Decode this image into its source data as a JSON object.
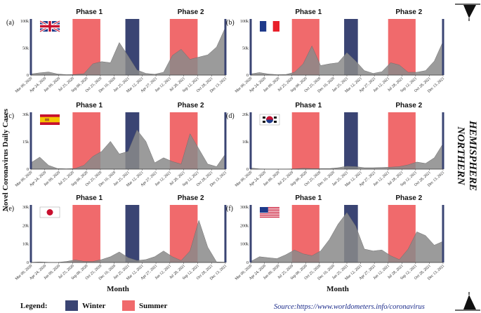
{
  "title": "Novel Coronavirus Daily Cases",
  "ylabel": "Novel Coronavirus Daily Cases",
  "xlabel": "Month",
  "hemisphere": [
    "NORTHERN",
    "HEMISPHERE"
  ],
  "phase_labels": [
    "Phase 1",
    "Phase 2"
  ],
  "legend": {
    "title": "Legend:",
    "items": [
      {
        "label": "Winter",
        "color": "#3a4473"
      },
      {
        "label": "Summer",
        "color": "#f06a6c"
      }
    ]
  },
  "source": {
    "prefix": "Source:",
    "url": "https://www.worldometers.info/coronavirus"
  },
  "colors": {
    "area": "#8a8a8a",
    "winter": "#3a4473",
    "summer": "#f06a6c",
    "axis": "#3a4473"
  },
  "chart_data": [
    {
      "type": "area",
      "panel": "(a)",
      "country": "United Kingdom",
      "flag": "uk",
      "yticks": [
        "100k",
        "50k",
        "0"
      ],
      "ylim": [
        0,
        100000
      ],
      "xticks": [
        "Mar 09, 2020",
        "Apr 24, 2020",
        "Jun 09, 2020",
        "Jul 25, 2020",
        "Sep 09, 2020",
        "Oct 25, 2020",
        "Dec 10, 2020",
        "Jan 25, 2021",
        "Mar 12, 2021",
        "Apr 27, 2021",
        "Jun 12, 2021",
        "Jul 28, 2021",
        "Sep 12, 2021",
        "Oct 28, 2021",
        "Dec 13, 2021"
      ],
      "summer": [
        [
          3,
          5
        ],
        [
          10,
          12
        ]
      ],
      "winter": [
        [
          6.8,
          7.8
        ]
      ],
      "values": [
        2000,
        4000,
        5500,
        2000,
        700,
        1000,
        2500,
        20000,
        24000,
        22000,
        58000,
        34000,
        9000,
        3000,
        1500,
        5000,
        35000,
        46000,
        28000,
        32000,
        36000,
        50000,
        85000
      ]
    },
    {
      "type": "area",
      "panel": "(b)",
      "country": "France",
      "flag": "france",
      "yticks": [
        "100k",
        "50k",
        "0"
      ],
      "ylim": [
        0,
        100000
      ],
      "xticks": [
        "Mar 09, 2020",
        "Apr 24, 2020",
        "Jun 09, 2020",
        "Jul 25, 2020",
        "Sep 09, 2020",
        "Oct 25, 2020",
        "Dec 10, 2020",
        "Jan 25, 2021",
        "Mar 12, 2021",
        "Apr 27, 2021",
        "Jun 12, 2021",
        "Jul 28, 2021",
        "Sep 12, 2021",
        "Oct 28, 2021",
        "Dec 13, 2021"
      ],
      "summer": [
        [
          3,
          5
        ],
        [
          10,
          12
        ]
      ],
      "winter": [
        [
          6.8,
          7.8
        ]
      ],
      "values": [
        2000,
        4500,
        2000,
        800,
        1000,
        5000,
        20000,
        52000,
        17000,
        20000,
        22000,
        40000,
        25000,
        8000,
        3000,
        6000,
        22000,
        18000,
        5000,
        5000,
        8000,
        25000,
        60000
      ]
    },
    {
      "type": "area",
      "panel": "(c)",
      "country": "Spain",
      "flag": "spain",
      "yticks": [
        "30k",
        "15k",
        "0"
      ],
      "ylim": [
        0,
        45000
      ],
      "xticks": [
        "Mar 09, 2020",
        "Apr 24, 2020",
        "Jun 09, 2020",
        "Jul 25, 2020",
        "Sep 09, 2020",
        "Oct 25, 2020",
        "Dec 10, 2020",
        "Jan 25, 2021",
        "Mar 12, 2021",
        "Apr 27, 2021",
        "Jun 12, 2021",
        "Jul 28, 2021",
        "Sep 12, 2021",
        "Oct 28, 2021",
        "Dec 13, 2021"
      ],
      "summer": [
        [
          3,
          5
        ],
        [
          10,
          12
        ]
      ],
      "winter": [
        [
          6.8,
          7.8
        ]
      ],
      "values": [
        5000,
        9500,
        3000,
        500,
        300,
        500,
        3000,
        10000,
        14000,
        22000,
        12000,
        14000,
        31000,
        22000,
        5000,
        9000,
        6000,
        4000,
        28000,
        16000,
        4000,
        2000,
        12000
      ]
    },
    {
      "type": "area",
      "panel": "(d)",
      "country": "South Korea",
      "flag": "korea",
      "yticks": [
        "20k",
        "10k",
        "0"
      ],
      "ylim": [
        0,
        20000
      ],
      "xticks": [
        "Mar 09, 2020",
        "Apr 24, 2020",
        "Jun 09, 2020",
        "Jul 25, 2020",
        "Sep 09, 2020",
        "Oct 25, 2020",
        "Dec 10, 2020",
        "Jan 25, 2021",
        "Mar 12, 2021",
        "Apr 27, 2021",
        "Jun 12, 2021",
        "Jul 28, 2021",
        "Sep 12, 2021",
        "Oct 28, 2021",
        "Dec 13, 2021"
      ],
      "summer": [
        [
          3,
          5
        ],
        [
          10,
          12
        ]
      ],
      "winter": [
        [
          6.8,
          7.8
        ]
      ],
      "values": [
        400,
        100,
        50,
        50,
        50,
        100,
        300,
        200,
        200,
        200,
        500,
        1000,
        900,
        500,
        500,
        600,
        700,
        900,
        1500,
        2500,
        2000,
        4000,
        9000
      ]
    },
    {
      "type": "area",
      "panel": "(e)",
      "country": "Japan",
      "flag": "japan",
      "yticks": [
        "30k",
        "20k",
        "10k",
        "0"
      ],
      "ylim": [
        0,
        30000
      ],
      "xticks": [
        "Mar 09, 2020",
        "Apr 24, 2020",
        "Jun 09, 2020",
        "Jul 25, 2020",
        "Sep 09, 2020",
        "Oct 25, 2020",
        "Dec 10, 2020",
        "Jan 25, 2021",
        "Mar 12, 2021",
        "Apr 27, 2021",
        "Jun 12, 2021",
        "Jul 28, 2021",
        "Sep 12, 2021",
        "Oct 28, 2021",
        "Dec 13, 2021"
      ],
      "summer": [
        [
          3,
          5
        ],
        [
          10,
          12
        ]
      ],
      "winter": [
        [
          6.8,
          7.8
        ]
      ],
      "values": [
        100,
        300,
        100,
        50,
        500,
        1300,
        600,
        500,
        1500,
        3000,
        5500,
        2500,
        1000,
        1500,
        3000,
        6000,
        3000,
        1000,
        6000,
        22000,
        8000,
        300,
        200
      ]
    },
    {
      "type": "area",
      "panel": "(f)",
      "country": "United States",
      "flag": "usa",
      "yticks": [
        "300k",
        "200k",
        "100k",
        "0"
      ],
      "ylim": [
        0,
        300000
      ],
      "xticks": [
        "Mar 09, 2020",
        "Apr 24, 2020",
        "Jun 09, 2020",
        "Jul 25, 2020",
        "Sep 09, 2020",
        "Oct 25, 2020",
        "Dec 10, 2020",
        "Jan 25, 2021",
        "Mar 12, 2021",
        "Apr 27, 2021",
        "Jun 12, 2021",
        "Jul 28, 2021",
        "Sep 12, 2021",
        "Oct 28, 2021",
        "Dec 13, 2021"
      ],
      "summer": [
        [
          3,
          5
        ],
        [
          10,
          12
        ]
      ],
      "winter": [
        [
          6.8,
          7.8
        ]
      ],
      "values": [
        5000,
        30000,
        25000,
        20000,
        40000,
        65000,
        45000,
        35000,
        60000,
        120000,
        200000,
        260000,
        190000,
        70000,
        60000,
        65000,
        35000,
        15000,
        70000,
        160000,
        140000,
        90000,
        110000
      ]
    }
  ]
}
